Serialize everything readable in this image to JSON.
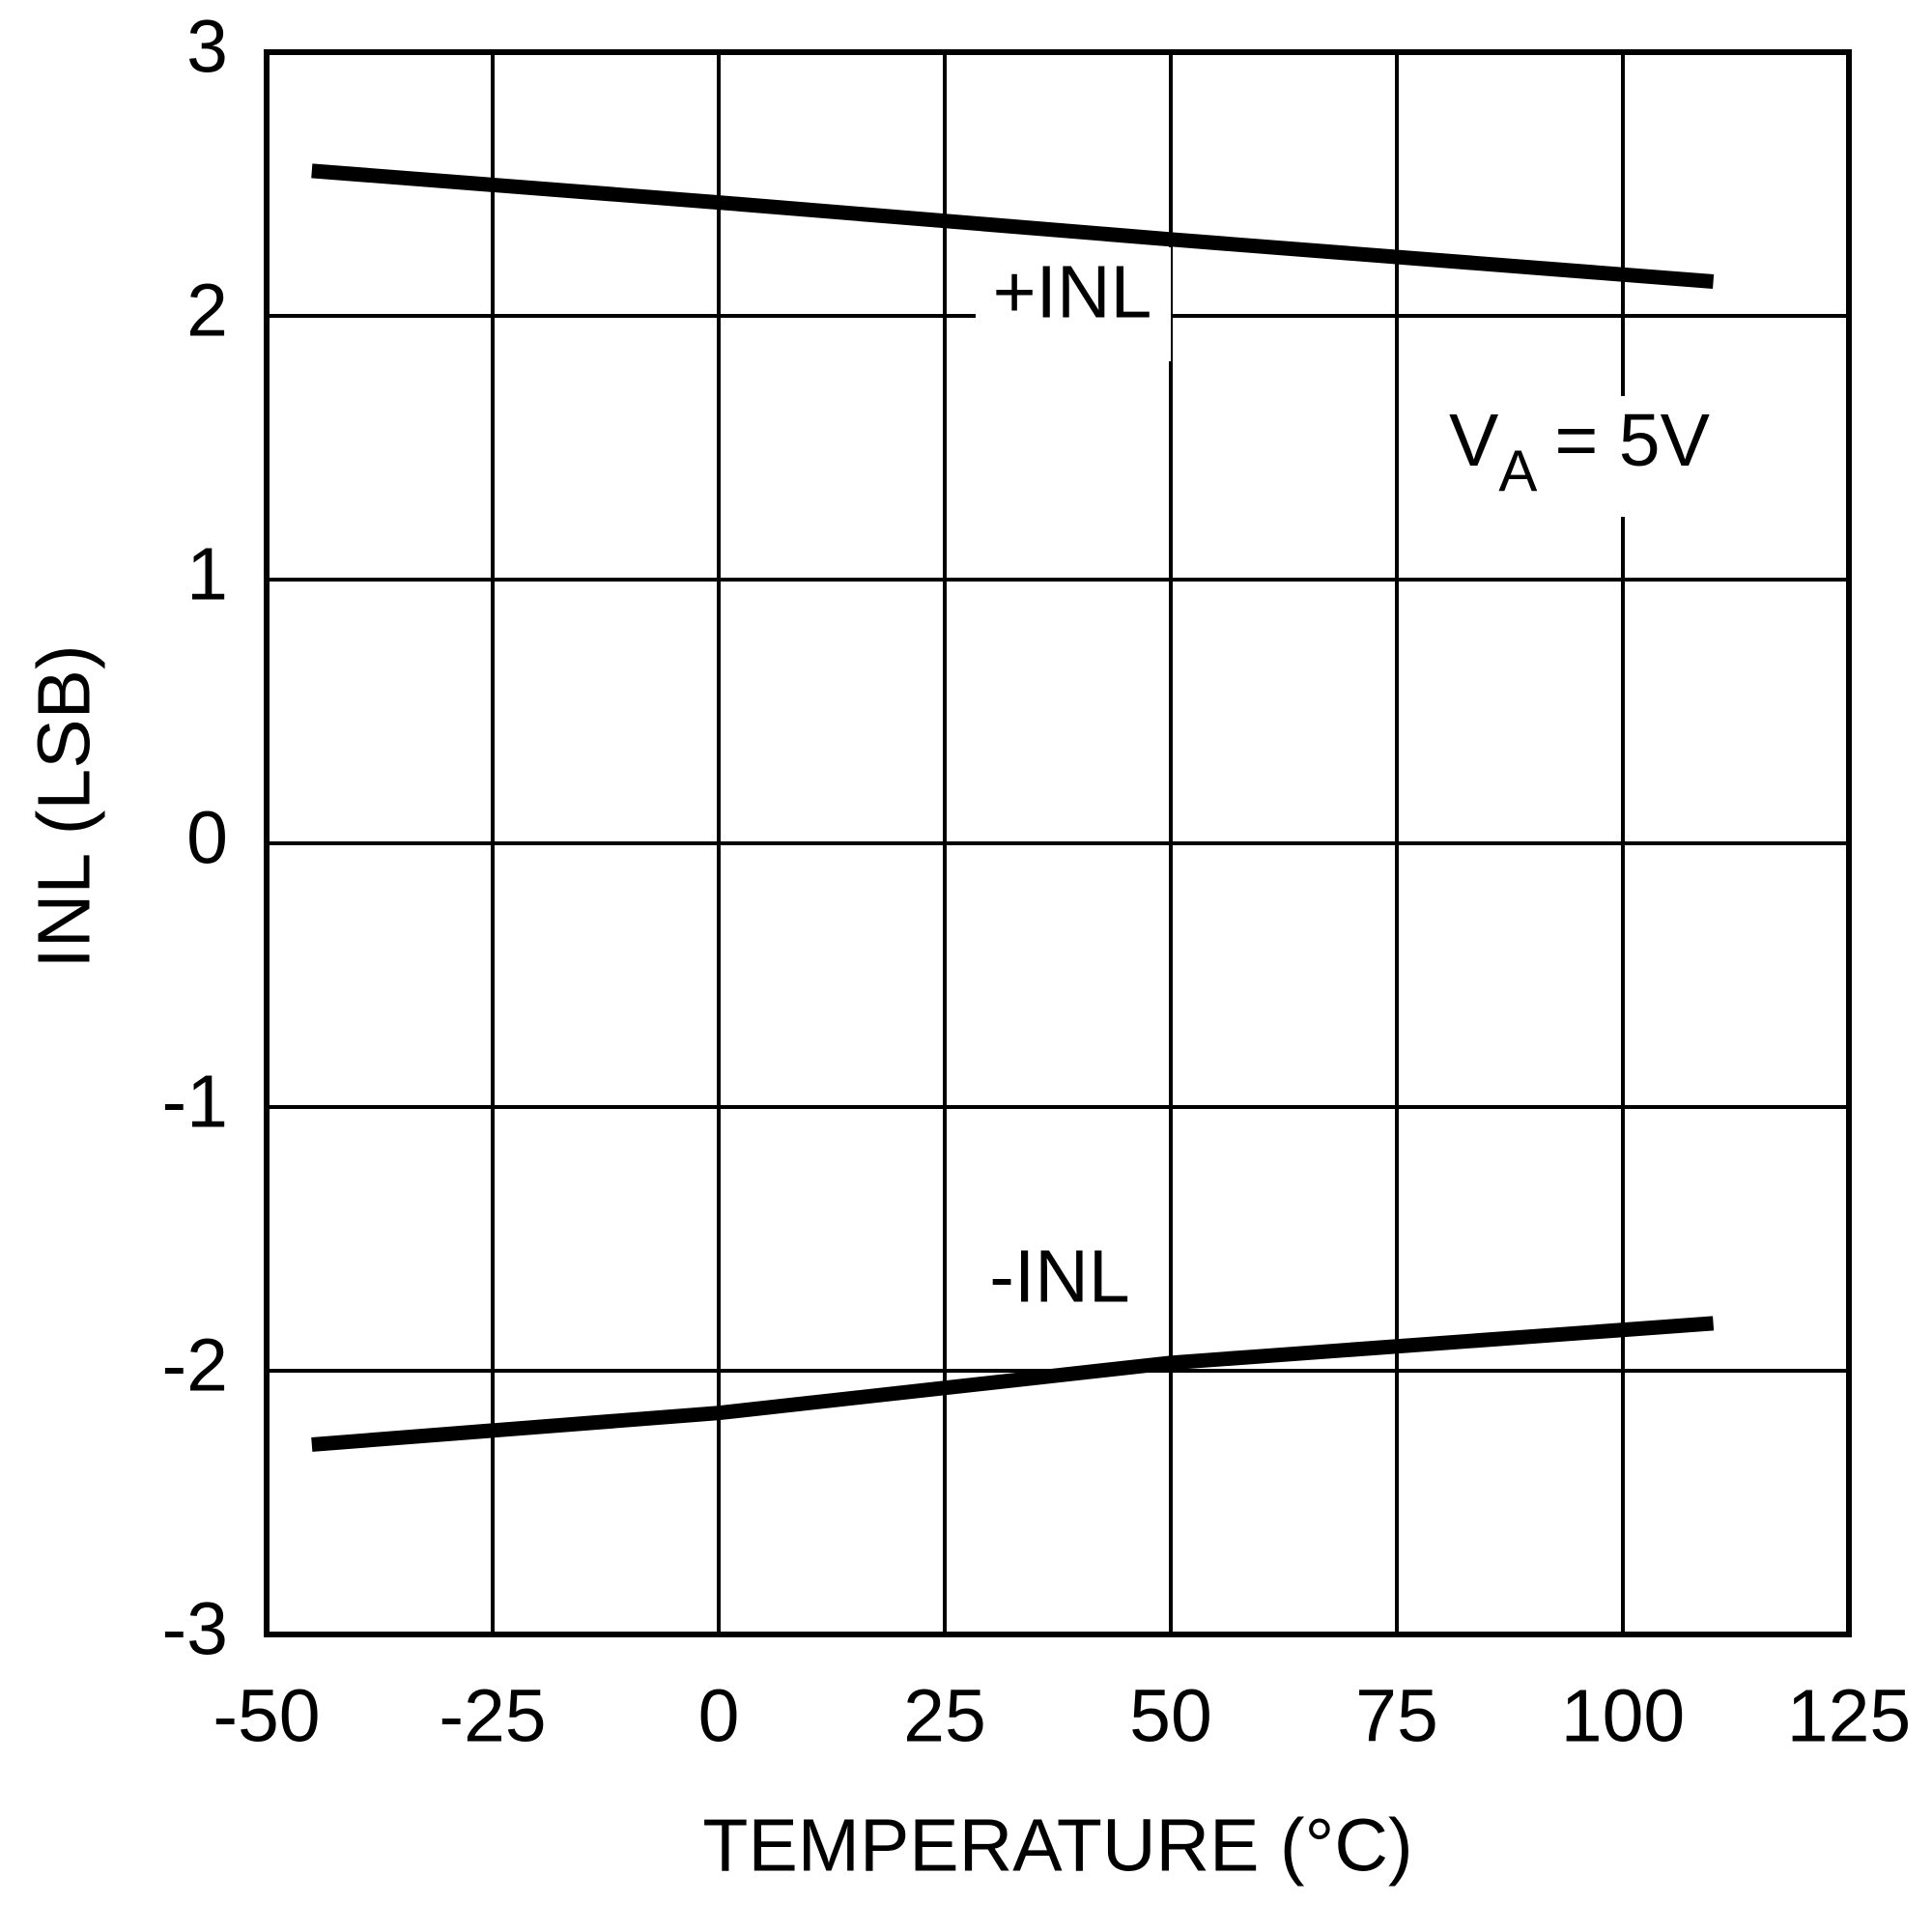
{
  "chart_data": {
    "type": "line",
    "xlabel": "TEMPERATURE (°C)",
    "ylabel": "INL (LSB)",
    "x": [
      -45,
      0,
      50,
      110
    ],
    "series": [
      {
        "name": "+INL",
        "color": "#000000",
        "values": [
          2.55,
          2.43,
          2.29,
          2.13
        ]
      },
      {
        "name": "-INL",
        "color": "#000000",
        "values": [
          -2.28,
          -2.16,
          -1.97,
          -1.82
        ]
      }
    ],
    "annotation": {
      "main": "V",
      "subscript": "A",
      "rest": "= 5V"
    },
    "xlim": [
      -50,
      125
    ],
    "xticks": [
      -50,
      -25,
      0,
      25,
      50,
      75,
      100,
      125
    ],
    "ylim": [
      -3,
      3
    ],
    "yticks": [
      -3,
      -2,
      -1,
      0,
      1,
      2,
      3
    ],
    "grid": true
  }
}
